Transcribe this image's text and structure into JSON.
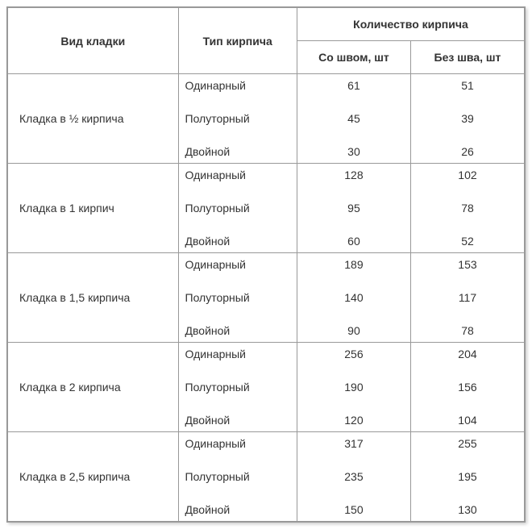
{
  "headers": {
    "masonry_type": "Вид кладки",
    "brick_type": "Тип кирпича",
    "brick_qty": "Количество кирпича",
    "with_seam": "Со швом, шт",
    "without_seam": "Без шва, шт"
  },
  "brick_types": {
    "single": "Одинарный",
    "one_and_half": "Полуторный",
    "double": "Двойной"
  },
  "rows": [
    {
      "masonry": "Кладка в ½ кирпича",
      "with_seam": [
        61,
        45,
        30
      ],
      "without_seam": [
        51,
        39,
        26
      ]
    },
    {
      "masonry": "Кладка в 1 кирпич",
      "with_seam": [
        128,
        95,
        60
      ],
      "without_seam": [
        102,
        78,
        52
      ]
    },
    {
      "masonry": "Кладка в 1,5 кирпича",
      "with_seam": [
        189,
        140,
        90
      ],
      "without_seam": [
        153,
        117,
        78
      ]
    },
    {
      "masonry": "Кладка в 2 кирпича",
      "with_seam": [
        256,
        190,
        120
      ],
      "without_seam": [
        204,
        156,
        104
      ]
    },
    {
      "masonry": "Кладка в 2,5 кирпича",
      "with_seam": [
        317,
        235,
        150
      ],
      "without_seam": [
        255,
        195,
        130
      ]
    }
  ],
  "style": {
    "border_color": "#999999",
    "text_color": "#333333",
    "background": "#ffffff",
    "fontsize": 14,
    "header_font_weight": "bold"
  }
}
